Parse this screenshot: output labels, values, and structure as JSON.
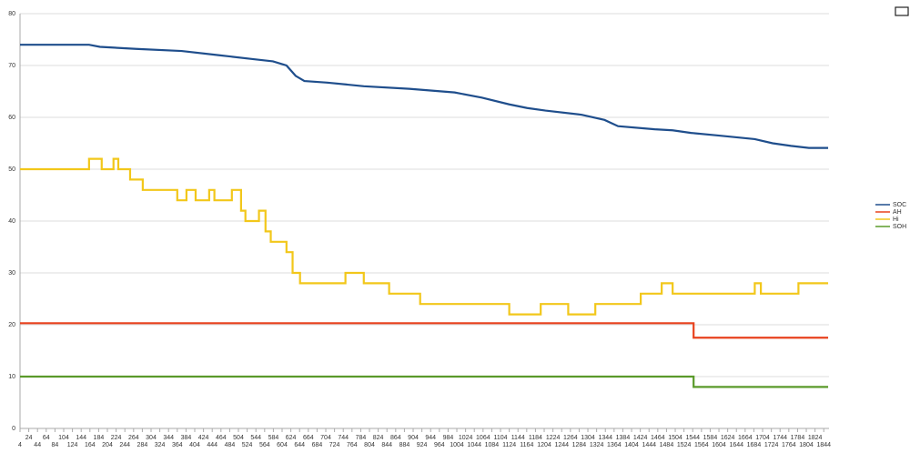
{
  "chart_data": {
    "type": "line",
    "xlim": [
      4,
      1856
    ],
    "ylim": [
      0,
      80
    ],
    "yticks": [
      0,
      10,
      20,
      30,
      40,
      50,
      60,
      70,
      80
    ],
    "xticks": [
      4,
      24,
      44,
      64,
      84,
      104,
      124,
      144,
      164,
      184,
      204,
      224,
      244,
      264,
      284,
      304,
      324,
      344,
      364,
      384,
      404,
      424,
      444,
      464,
      484,
      504,
      524,
      544,
      564,
      584,
      604,
      624,
      644,
      664,
      684,
      704,
      724,
      744,
      764,
      784,
      804,
      824,
      844,
      864,
      884,
      904,
      924,
      944,
      964,
      984,
      1004,
      1024,
      1044,
      1064,
      1084,
      1104,
      1124,
      1144,
      1164,
      1184,
      1204,
      1224,
      1244,
      1264,
      1284,
      1304,
      1324,
      1344,
      1364,
      1384,
      1404,
      1424,
      1444,
      1464,
      1484,
      1504,
      1524,
      1544,
      1564,
      1584,
      1604,
      1624,
      1644,
      1664,
      1684,
      1704,
      1724,
      1744,
      1764,
      1784,
      1804,
      1824,
      1844
    ],
    "grid": true,
    "legend": "right",
    "series": [
      {
        "name": "SOC",
        "color": "#1f4e8c",
        "step": false,
        "x": [
          4,
          162,
          187,
          270,
          374,
          458,
          541,
          583,
          614,
          635,
          655,
          707,
          791,
          895,
          999,
          1061,
          1124,
          1165,
          1207,
          1290,
          1342,
          1373,
          1457,
          1498,
          1540,
          1602,
          1686,
          1727,
          1769,
          1810,
          1854
        ],
        "values": [
          74,
          74,
          73.6,
          73.2,
          72.8,
          72,
          71.2,
          70.8,
          70,
          68,
          67,
          66.7,
          66,
          65.5,
          64.8,
          63.8,
          62.5,
          61.8,
          61.3,
          60.5,
          59.5,
          58.3,
          57.7,
          57.5,
          57,
          56.5,
          55.8,
          55,
          54.5,
          54.1,
          54.1
        ]
      },
      {
        "name": "AH",
        "color": "#e8421e",
        "step": true,
        "x": [
          4,
          1546,
          1854
        ],
        "values": [
          20.3,
          17.5,
          17.5
        ]
      },
      {
        "name": "Hi",
        "color": "#f2c71a",
        "step": true,
        "x": [
          4,
          162,
          191,
          218,
          229,
          256,
          285,
          364,
          385,
          406,
          437,
          449,
          489,
          510,
          520,
          551,
          566,
          578,
          614,
          628,
          645,
          749,
          791,
          849,
          920,
          1124,
          1196,
          1259,
          1321,
          1425,
          1473,
          1498,
          1686,
          1700,
          1727,
          1786,
          1854
        ],
        "values": [
          50,
          52,
          50,
          52,
          50,
          48,
          46,
          44,
          46,
          44,
          46,
          44,
          46,
          42,
          40,
          42,
          38,
          36,
          34,
          30,
          28,
          30,
          28,
          26,
          24,
          22,
          24,
          22,
          24,
          26,
          28,
          26,
          28,
          26,
          26,
          28,
          28
        ]
      },
      {
        "name": "SOH",
        "color": "#5a9a2a",
        "step": true,
        "x": [
          4,
          1546,
          1854
        ],
        "values": [
          10,
          8,
          8
        ]
      }
    ]
  }
}
